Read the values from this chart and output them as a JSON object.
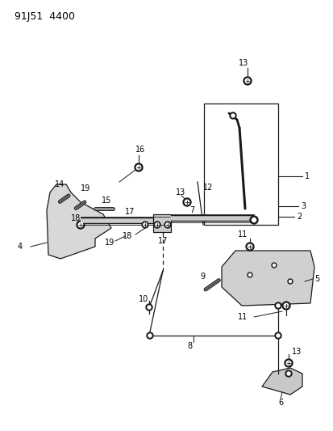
{
  "title": "91J51  4400",
  "bg": "#ffffff",
  "lc": "#1a1a1a",
  "tc": "#000000",
  "figsize": [
    4.14,
    5.33
  ],
  "dpi": 100
}
